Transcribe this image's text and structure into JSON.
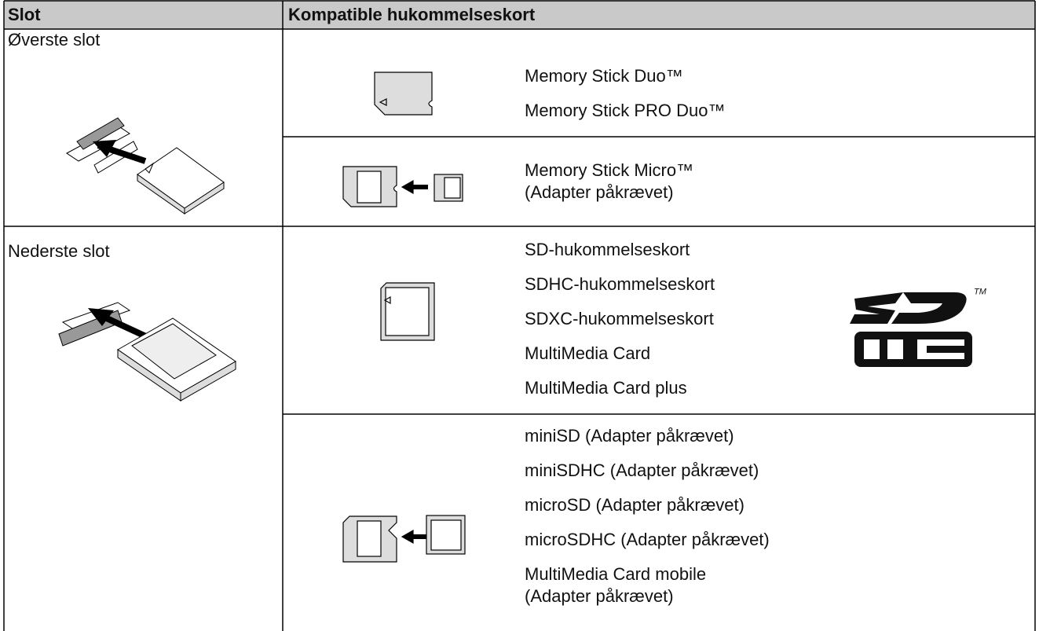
{
  "table": {
    "header": [
      "Slot",
      "Kompatible hukommelseskort"
    ],
    "rows": [
      {
        "slot": "Øverste slot",
        "groups": [
          [
            [
              "Memory Stick Duo™"
            ],
            [
              "Memory Stick PRO Duo™"
            ]
          ],
          [
            [
              "Memory Stick Micro™",
              "(Adapter påkrævet)"
            ]
          ]
        ]
      },
      {
        "slot": "Nederste slot",
        "groups": [
          [
            [
              "SD-hukommelseskort"
            ],
            [
              "SDHC-hukommelseskort"
            ],
            [
              "SDXC-hukommelseskort"
            ],
            [
              "MultiMedia Card"
            ],
            [
              "MultiMedia Card plus"
            ]
          ],
          [
            [
              "miniSD (Adapter påkrævet)"
            ],
            [
              "miniSDHC (Adapter påkrævet)"
            ],
            [
              "microSD (Adapter påkrævet)"
            ],
            [
              "microSDHC (Adapter påkrævet)"
            ],
            [
              "MultiMedia Card mobile",
              "(Adapter påkrævet)"
            ]
          ]
        ]
      }
    ],
    "logo_mark": "TM"
  }
}
